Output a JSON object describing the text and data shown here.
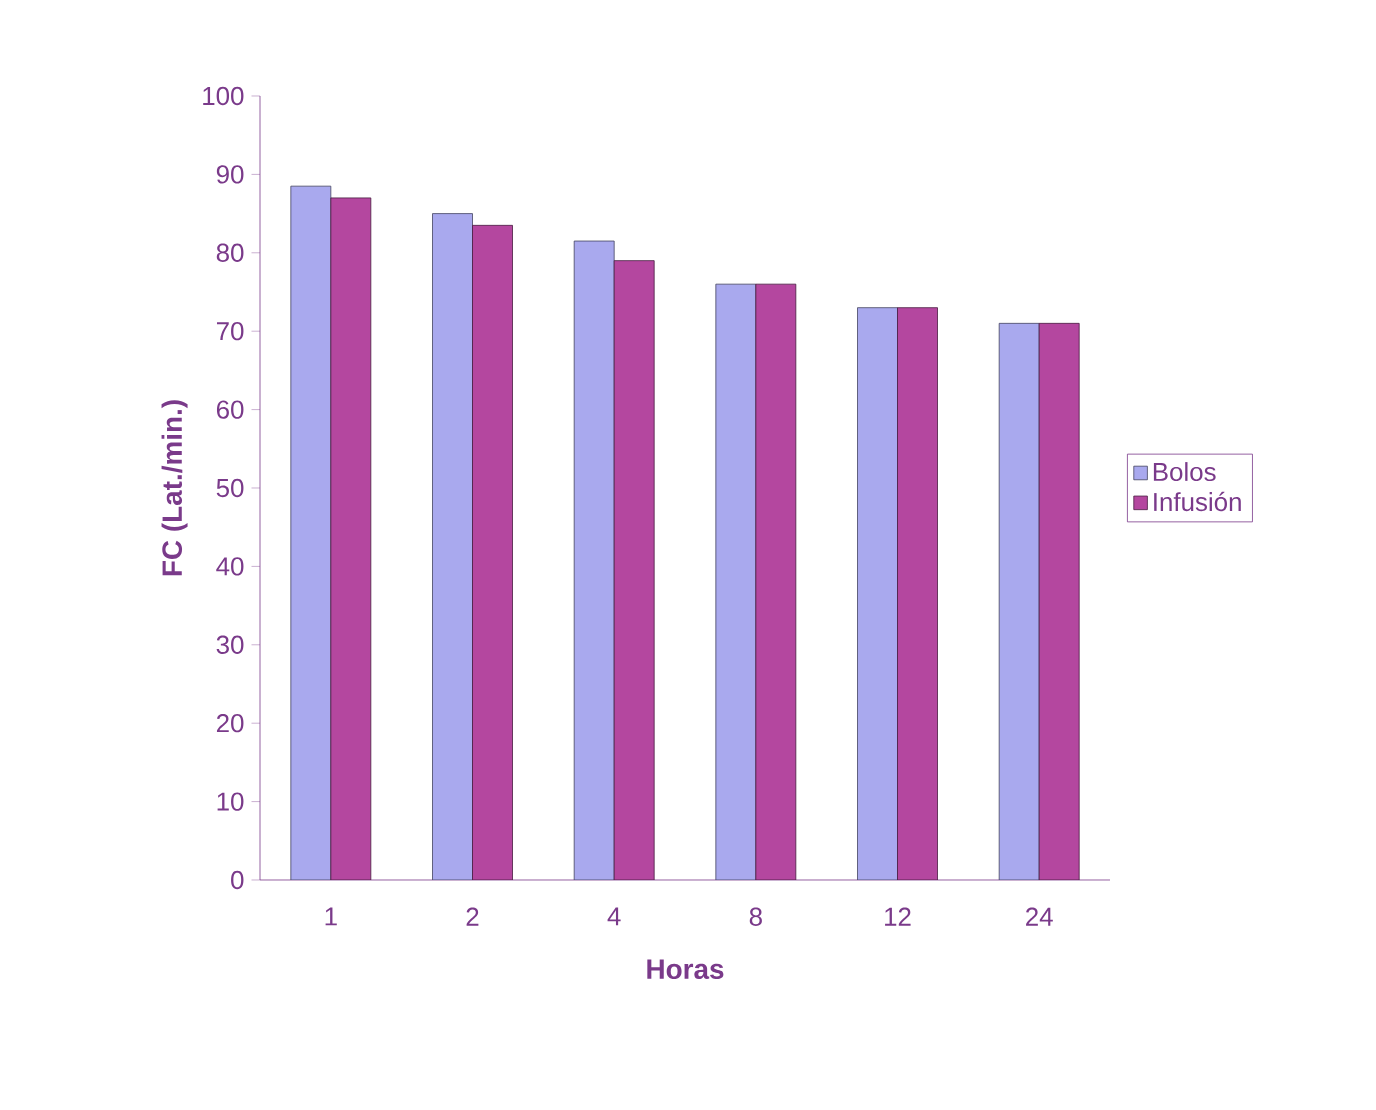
{
  "chart_data": {
    "type": "bar",
    "xlabel": "Horas",
    "ylabel": "FC (Lat./min.)",
    "categories": [
      "1",
      "2",
      "4",
      "8",
      "12",
      "24"
    ],
    "series": [
      {
        "name": "Bolos",
        "color": "#a9a9ee",
        "values": [
          88.5,
          85,
          81.5,
          76,
          73,
          71
        ]
      },
      {
        "name": "Infusión",
        "color": "#b4479f",
        "values": [
          87,
          83.5,
          79,
          76,
          73,
          71
        ]
      }
    ],
    "ylim": [
      0,
      100
    ],
    "yticks": [
      0,
      10,
      20,
      30,
      40,
      50,
      60,
      70,
      80,
      90,
      100
    ],
    "grid": false,
    "legend": "right"
  }
}
